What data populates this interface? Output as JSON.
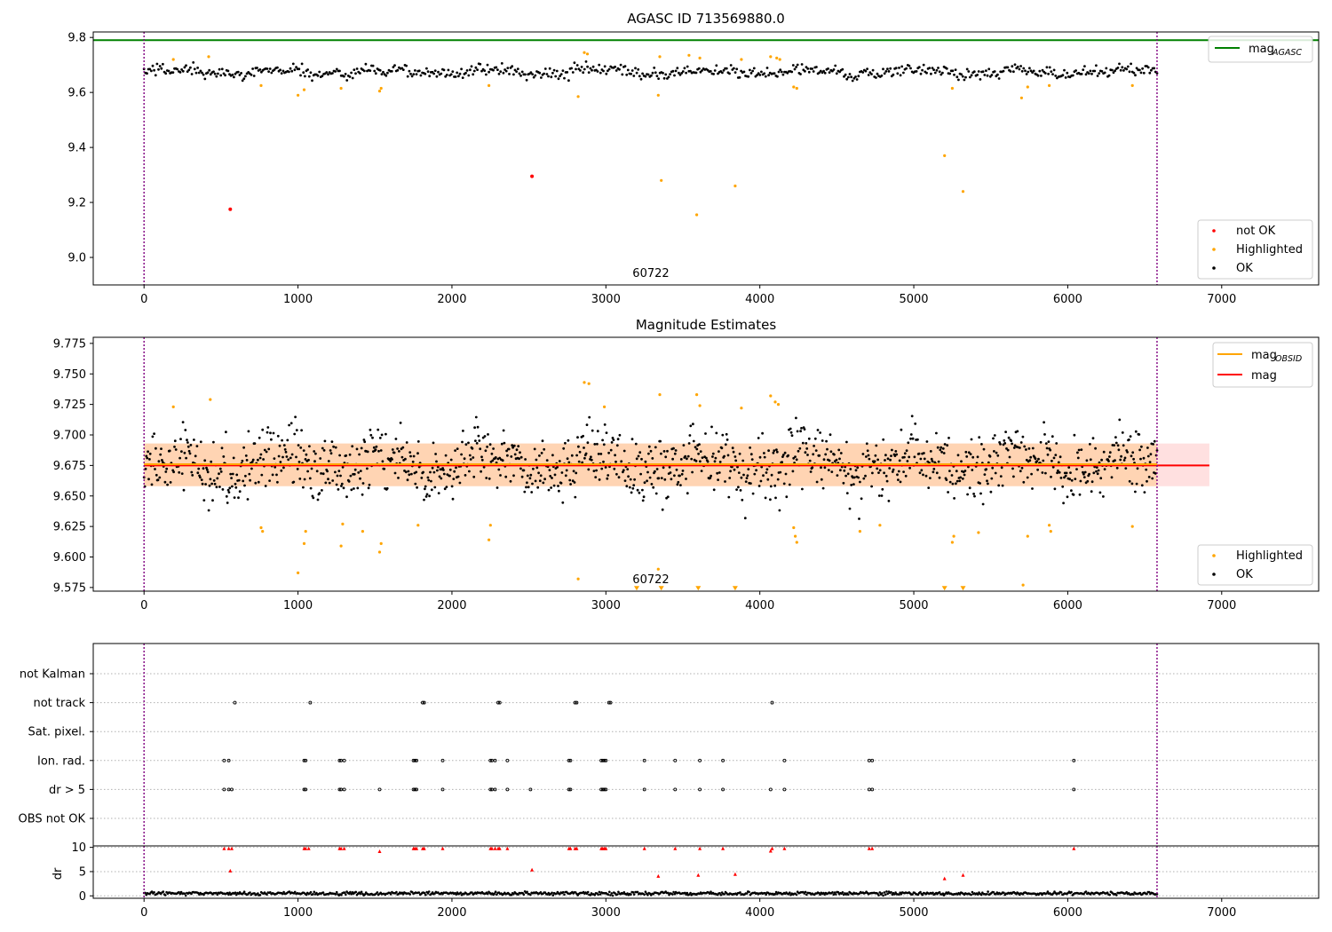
{
  "chart_data": [
    {
      "type": "scatter",
      "title": "AGASC ID 713569880.0",
      "xlabel": "",
      "ylabel": "",
      "xlim": [
        -330,
        7630
      ],
      "ylim": [
        8.9,
        9.82
      ],
      "xticks": [
        0,
        1000,
        2000,
        3000,
        4000,
        5000,
        6000,
        7000
      ],
      "xtick_labels": [
        "0",
        "1000",
        "2000",
        "3000",
        "4000",
        "5000",
        "6000",
        "7000"
      ],
      "yticks": [
        9.0,
        9.2,
        9.4,
        9.6,
        9.8
      ],
      "ytick_labels": [
        "9.0",
        "9.2",
        "9.4",
        "9.6",
        "9.8"
      ],
      "grid": false,
      "vlines": [
        0,
        6580
      ],
      "hlines": [
        {
          "name": "mag_AGASC",
          "y": 9.79,
          "color": "#008000"
        }
      ],
      "annotation": "60722",
      "annotation_x": 3200,
      "legend": {
        "position": "lower-right",
        "entries": [
          "not OK",
          "Highlighted",
          "OK"
        ]
      },
      "legend_upper": {
        "position": "upper-right",
        "entries": [
          "mag"
        ],
        "subscript": "AGASC"
      },
      "series": [
        {
          "name": "OK",
          "color": "#000000",
          "band": {
            "x_start": 0,
            "x_end": 6580,
            "center": 9.675,
            "half_width": 0.035
          }
        },
        {
          "name": "Highlighted",
          "color": "#ffa500",
          "x": [
            190,
            420,
            760,
            1000,
            1040,
            1280,
            1530,
            1540,
            2240,
            2820,
            2860,
            2880,
            3340,
            3350,
            3360,
            3540,
            3590,
            3610,
            3840,
            3880,
            4070,
            4110,
            4130,
            4220,
            4240,
            5200,
            5250,
            5320,
            5700,
            5740,
            5880,
            6420
          ],
          "y": [
            9.72,
            9.73,
            9.625,
            9.59,
            9.61,
            9.615,
            9.605,
            9.615,
            9.625,
            9.585,
            9.745,
            9.74,
            9.59,
            9.73,
            9.28,
            9.735,
            9.155,
            9.725,
            9.26,
            9.72,
            9.73,
            9.725,
            9.72,
            9.62,
            9.615,
            9.37,
            9.615,
            9.24,
            9.58,
            9.62,
            9.625,
            9.625
          ]
        },
        {
          "name": "not OK",
          "color": "#ff0000",
          "x": [
            560,
            2520
          ],
          "y": [
            9.175,
            9.295
          ]
        }
      ]
    },
    {
      "type": "scatter",
      "title": "Magnitude Estimates",
      "xlabel": "",
      "ylabel": "",
      "xlim": [
        -330,
        7630
      ],
      "ylim": [
        9.572,
        9.78
      ],
      "xticks": [
        0,
        1000,
        2000,
        3000,
        4000,
        5000,
        6000,
        7000
      ],
      "xtick_labels": [
        "0",
        "1000",
        "2000",
        "3000",
        "4000",
        "5000",
        "6000",
        "7000"
      ],
      "yticks": [
        9.575,
        9.6,
        9.625,
        9.65,
        9.675,
        9.7,
        9.725,
        9.75,
        9.775
      ],
      "ytick_labels": [
        "9.575",
        "9.600",
        "9.625",
        "9.650",
        "9.675",
        "9.700",
        "9.725",
        "9.750",
        "9.775"
      ],
      "grid": false,
      "vlines": [
        0,
        6580
      ],
      "mag_line": {
        "y": 9.675,
        "x_start": 0,
        "x_end": 6920,
        "color": "#ff0000"
      },
      "mag_obsid_line": {
        "y": 9.676,
        "x_start": 0,
        "x_end": 6580,
        "color": "#ffa500"
      },
      "band": {
        "y_low": 9.658,
        "y_high": 9.693,
        "x_start": 0,
        "x_end": 6920
      },
      "annotation": "60722",
      "annotation_x": 3200,
      "legend_upper": {
        "position": "upper-right",
        "entries": [
          "mag",
          "mag"
        ],
        "subscript": "OBSID"
      },
      "legend": {
        "position": "lower-right",
        "entries": [
          "Highlighted",
          "OK"
        ]
      },
      "series": [
        {
          "name": "OK",
          "color": "#000000",
          "band": {
            "x_start": 0,
            "x_end": 6580,
            "center": 9.676,
            "half_width": 0.03
          }
        },
        {
          "name": "Highlighted",
          "color": "#ffa500",
          "x": [
            190,
            430,
            760,
            770,
            1000,
            1040,
            1050,
            1280,
            1290,
            1420,
            1530,
            1540,
            1780,
            2240,
            2250,
            2820,
            2860,
            2890,
            2990,
            3340,
            3350,
            3590,
            3610,
            3880,
            4070,
            4100,
            4120,
            4220,
            4230,
            4240,
            4650,
            4780,
            5250,
            5260,
            5420,
            5710,
            5740,
            5880,
            5890,
            6420
          ],
          "y": [
            9.723,
            9.729,
            9.624,
            9.621,
            9.587,
            9.611,
            9.621,
            9.609,
            9.627,
            9.621,
            9.604,
            9.611,
            9.626,
            9.614,
            9.626,
            9.582,
            9.743,
            9.742,
            9.723,
            9.59,
            9.733,
            9.733,
            9.724,
            9.722,
            9.732,
            9.727,
            9.725,
            9.624,
            9.617,
            9.612,
            9.621,
            9.626,
            9.612,
            9.617,
            9.62,
            9.577,
            9.617,
            9.626,
            9.621,
            9.625
          ]
        },
        {
          "name": "Highlighted (off-scale)",
          "color": "#ffa500",
          "x": [
            3200,
            3360,
            3600,
            3840,
            5200,
            5320
          ],
          "y": [
            9.574,
            9.574,
            9.574,
            9.574,
            9.574,
            9.574
          ]
        }
      ]
    },
    {
      "type": "scatter",
      "title": "",
      "xlabel": "",
      "ylabel": "",
      "xlim": [
        -330,
        7630
      ],
      "categories": [
        "not Kalman",
        "not track",
        "Sat. pixel.",
        "Ion. rad.",
        "dr > 5",
        "OBS not OK"
      ],
      "vlines": [
        0,
        6580
      ],
      "grid": true,
      "flags": {
        "not track": [
          590,
          1080,
          1810,
          1820,
          2300,
          2310,
          2800,
          2810,
          3020,
          3030,
          4080
        ],
        "Ion. rad.": [
          520,
          550,
          1040,
          1050,
          1270,
          1280,
          1300,
          1750,
          1760,
          1770,
          1940,
          2250,
          2260,
          2280,
          2360,
          2760,
          2770,
          2970,
          2980,
          2990,
          3000,
          3250,
          3450,
          3610,
          3760,
          4160,
          4710,
          4730,
          6040
        ],
        "dr > 5": [
          520,
          550,
          570,
          1040,
          1050,
          1270,
          1280,
          1300,
          1530,
          1750,
          1760,
          1770,
          1940,
          2250,
          2260,
          2280,
          2360,
          2510,
          2760,
          2770,
          2970,
          2980,
          2990,
          3000,
          3250,
          3450,
          3610,
          3760,
          4070,
          4160,
          4710,
          4730,
          6040
        ]
      }
    },
    {
      "type": "scatter",
      "title": "",
      "xlabel": "",
      "ylabel": "dr",
      "xlim": [
        -330,
        7630
      ],
      "ylim": [
        -0.5,
        10.3
      ],
      "yticks": [
        0,
        5,
        10
      ],
      "ytick_labels": [
        "0",
        "5",
        "10"
      ],
      "vlines": [
        0,
        6580
      ],
      "grid": true,
      "series": [
        {
          "name": "OK",
          "color": "#000000",
          "band": {
            "x_start": 0,
            "x_end": 6580,
            "center": 0.5,
            "half_width": 0.5
          }
        },
        {
          "name": "not OK",
          "color": "#ff0000",
          "x": [
            520,
            550,
            560,
            570,
            1040,
            1050,
            1070,
            1270,
            1280,
            1300,
            1530,
            1750,
            1760,
            1770,
            1810,
            1820,
            1940,
            2250,
            2260,
            2280,
            2300,
            2310,
            2360,
            2520,
            2760,
            2770,
            2800,
            2810,
            2970,
            2980,
            2990,
            3000,
            3250,
            3340,
            3450,
            3600,
            3610,
            3760,
            3840,
            4070,
            4080,
            4160,
            4710,
            4730,
            5200,
            5320,
            6040
          ],
          "y": [
            9.8,
            9.8,
            5.2,
            9.8,
            9.8,
            9.8,
            9.8,
            9.8,
            9.8,
            9.8,
            9.2,
            9.8,
            9.8,
            9.8,
            9.8,
            9.8,
            9.8,
            9.8,
            9.8,
            9.8,
            9.8,
            9.8,
            9.8,
            5.4,
            9.8,
            9.8,
            9.8,
            9.8,
            9.8,
            9.8,
            9.8,
            9.8,
            9.8,
            4.1,
            9.8,
            4.3,
            9.8,
            9.8,
            4.5,
            9.3,
            9.8,
            9.8,
            9.8,
            9.8,
            3.6,
            4.3,
            9.8
          ]
        }
      ]
    }
  ]
}
